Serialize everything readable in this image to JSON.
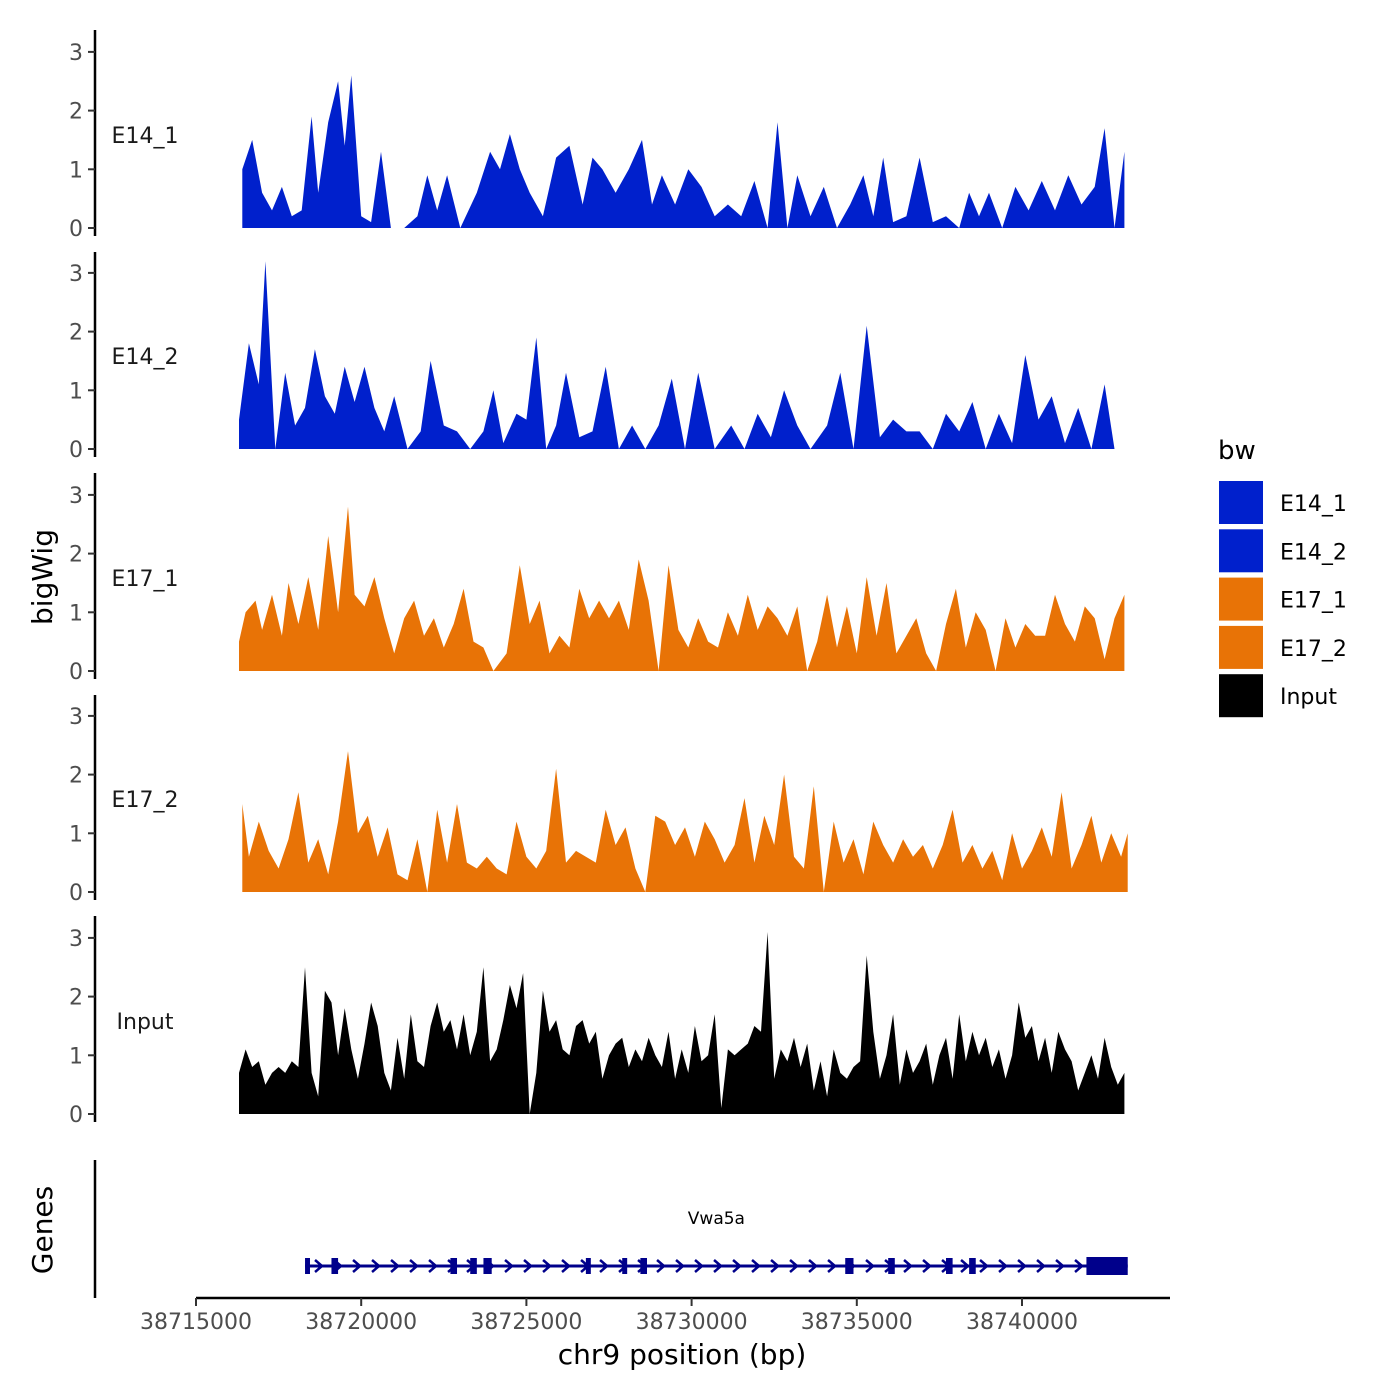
{
  "chart_data": {
    "type": "area",
    "title": "",
    "xlabel": "chr9 position (bp)",
    "ylabel": "bigWig",
    "gene_panel_label": "Genes",
    "legend": {
      "title": "bw",
      "placement": "right",
      "entries": [
        {
          "name": "E14_1",
          "color": "#0020CC"
        },
        {
          "name": "E14_2",
          "color": "#0020CC"
        },
        {
          "name": "E17_1",
          "color": "#E87306"
        },
        {
          "name": "E17_2",
          "color": "#E87306"
        },
        {
          "name": "Input",
          "color": "#000000"
        }
      ]
    },
    "xlim": [
      38715000,
      38744500
    ],
    "xticks": [
      38715000,
      38720000,
      38725000,
      38730000,
      38735000,
      38740000
    ],
    "xtick_labels": [
      "38715000",
      "38720000",
      "38725000",
      "38730000",
      "38735000",
      "38740000"
    ],
    "ylim": [
      0,
      3.3
    ],
    "yticks": [
      0,
      1,
      2,
      3
    ],
    "ytick_labels": [
      "0",
      "1",
      "2",
      "3"
    ],
    "series": [
      {
        "name": "E14_1",
        "color": "#0020CC",
        "x": [
          38716400,
          38716700,
          38717000,
          38717300,
          38717600,
          38717900,
          38718200,
          38718500,
          38718700,
          38719000,
          38719300,
          38719500,
          38719700,
          38720000,
          38720300,
          38720600,
          38720900,
          38721300,
          38721700,
          38722000,
          38722300,
          38722600,
          38723000,
          38723500,
          38723900,
          38724200,
          38724500,
          38724800,
          38725100,
          38725500,
          38725900,
          38726300,
          38726700,
          38727000,
          38727300,
          38727700,
          38728100,
          38728500,
          38728800,
          38729100,
          38729500,
          38729900,
          38730300,
          38730700,
          38731100,
          38731500,
          38731900,
          38732300,
          38732600,
          38732900,
          38733200,
          38733600,
          38734000,
          38734400,
          38734800,
          38735200,
          38735500,
          38735800,
          38736100,
          38736500,
          38736900,
          38737300,
          38737700,
          38738100,
          38738400,
          38738700,
          38739000,
          38739400,
          38739800,
          38740200,
          38740600,
          38741000,
          38741400,
          38741800,
          38742200,
          38742500,
          38742800,
          38743100
        ],
        "values": [
          1.0,
          1.5,
          0.6,
          0.3,
          0.7,
          0.2,
          0.3,
          1.9,
          0.6,
          1.8,
          2.5,
          1.4,
          2.6,
          0.2,
          0.1,
          1.3,
          0.0,
          0.0,
          0.2,
          0.9,
          0.3,
          0.9,
          0.0,
          0.6,
          1.3,
          1.0,
          1.6,
          1.0,
          0.6,
          0.2,
          1.2,
          1.4,
          0.4,
          1.2,
          1.0,
          0.6,
          1.0,
          1.5,
          0.4,
          0.9,
          0.4,
          1.0,
          0.7,
          0.2,
          0.4,
          0.2,
          0.8,
          0.0,
          1.8,
          0.0,
          0.9,
          0.2,
          0.7,
          0.0,
          0.4,
          0.9,
          0.2,
          1.2,
          0.1,
          0.2,
          1.2,
          0.1,
          0.2,
          0.0,
          0.6,
          0.2,
          0.6,
          0.0,
          0.7,
          0.3,
          0.8,
          0.3,
          0.9,
          0.4,
          0.7,
          1.7,
          0.0,
          1.3
        ]
      },
      {
        "name": "E14_2",
        "color": "#0020CC",
        "x": [
          38716300,
          38716600,
          38716900,
          38717100,
          38717400,
          38717700,
          38718000,
          38718300,
          38718600,
          38718900,
          38719200,
          38719500,
          38719800,
          38720100,
          38720400,
          38720700,
          38721000,
          38721400,
          38721800,
          38722100,
          38722500,
          38722900,
          38723300,
          38723700,
          38724000,
          38724300,
          38724700,
          38725000,
          38725300,
          38725600,
          38725900,
          38726200,
          38726600,
          38727000,
          38727400,
          38727800,
          38728200,
          38728600,
          38729000,
          38729400,
          38729800,
          38730200,
          38730700,
          38731200,
          38731600,
          38732000,
          38732400,
          38732800,
          38733200,
          38733600,
          38734100,
          38734500,
          38734900,
          38735300,
          38735700,
          38736100,
          38736500,
          38736900,
          38737300,
          38737700,
          38738100,
          38738500,
          38738900,
          38739300,
          38739700,
          38740100,
          38740500,
          38740900,
          38741300,
          38741700,
          38742100,
          38742500,
          38742800
        ],
        "values": [
          0.5,
          1.8,
          1.1,
          3.2,
          0.0,
          1.3,
          0.4,
          0.7,
          1.7,
          0.9,
          0.6,
          1.4,
          0.8,
          1.4,
          0.7,
          0.3,
          0.9,
          0.0,
          0.3,
          1.5,
          0.4,
          0.3,
          0.0,
          0.3,
          1.0,
          0.1,
          0.6,
          0.5,
          1.9,
          0.0,
          0.4,
          1.3,
          0.2,
          0.3,
          1.4,
          0.0,
          0.4,
          0.0,
          0.4,
          1.2,
          0.0,
          1.3,
          0.0,
          0.4,
          0.0,
          0.6,
          0.2,
          1.0,
          0.4,
          0.0,
          0.4,
          1.3,
          0.0,
          2.1,
          0.2,
          0.5,
          0.3,
          0.3,
          0.0,
          0.6,
          0.3,
          0.8,
          0.0,
          0.6,
          0.1,
          1.6,
          0.5,
          0.9,
          0.1,
          0.7,
          0.0,
          1.1,
          0.0
        ]
      },
      {
        "name": "E17_1",
        "color": "#E87306",
        "x": [
          38716300,
          38716500,
          38716800,
          38717000,
          38717300,
          38717600,
          38717800,
          38718100,
          38718400,
          38718700,
          38719000,
          38719300,
          38719600,
          38719800,
          38720100,
          38720400,
          38720700,
          38721000,
          38721300,
          38721600,
          38721900,
          38722200,
          38722500,
          38722800,
          38723100,
          38723400,
          38723700,
          38724000,
          38724400,
          38724800,
          38725100,
          38725400,
          38725700,
          38726000,
          38726300,
          38726600,
          38726900,
          38727200,
          38727500,
          38727800,
          38728100,
          38728400,
          38728700,
          38729000,
          38729300,
          38729600,
          38729900,
          38730200,
          38730500,
          38730800,
          38731100,
          38731400,
          38731700,
          38732000,
          38732300,
          38732600,
          38732900,
          38733200,
          38733500,
          38733800,
          38734100,
          38734400,
          38734700,
          38735000,
          38735300,
          38735600,
          38735900,
          38736200,
          38736500,
          38736800,
          38737100,
          38737400,
          38737700,
          38738000,
          38738300,
          38738600,
          38738900,
          38739200,
          38739500,
          38739800,
          38740100,
          38740400,
          38740700,
          38741000,
          38741300,
          38741600,
          38741900,
          38742200,
          38742500,
          38742800,
          38743100
        ],
        "values": [
          0.5,
          1.0,
          1.2,
          0.7,
          1.3,
          0.6,
          1.5,
          0.8,
          1.6,
          0.7,
          2.3,
          1.0,
          2.8,
          1.3,
          1.1,
          1.6,
          0.9,
          0.3,
          0.9,
          1.2,
          0.6,
          0.9,
          0.4,
          0.8,
          1.4,
          0.5,
          0.4,
          0.0,
          0.3,
          1.8,
          0.8,
          1.2,
          0.3,
          0.6,
          0.4,
          1.4,
          0.9,
          1.2,
          0.9,
          1.2,
          0.7,
          1.9,
          1.2,
          0.0,
          1.8,
          0.7,
          0.4,
          0.9,
          0.5,
          0.4,
          1.0,
          0.6,
          1.3,
          0.7,
          1.1,
          0.9,
          0.6,
          1.1,
          0.0,
          0.5,
          1.3,
          0.4,
          1.1,
          0.3,
          1.6,
          0.6,
          1.5,
          0.3,
          0.6,
          0.9,
          0.3,
          0.0,
          0.8,
          1.4,
          0.4,
          1.0,
          0.7,
          0.0,
          0.9,
          0.4,
          0.8,
          0.6,
          0.6,
          1.3,
          0.8,
          0.5,
          1.1,
          0.9,
          0.2,
          0.9,
          1.3
        ]
      },
      {
        "name": "E17_2",
        "color": "#E87306",
        "x": [
          38716400,
          38716600,
          38716900,
          38717200,
          38717500,
          38717800,
          38718100,
          38718400,
          38718700,
          38719000,
          38719300,
          38719600,
          38719900,
          38720200,
          38720500,
          38720800,
          38721100,
          38721400,
          38721700,
          38722000,
          38722300,
          38722600,
          38722900,
          38723200,
          38723500,
          38723800,
          38724100,
          38724400,
          38724700,
          38725000,
          38725300,
          38725600,
          38725900,
          38726200,
          38726500,
          38726800,
          38727100,
          38727400,
          38727700,
          38728000,
          38728300,
          38728600,
          38728900,
          38729200,
          38729500,
          38729800,
          38730100,
          38730400,
          38730700,
          38731000,
          38731300,
          38731600,
          38731900,
          38732200,
          38732500,
          38732800,
          38733100,
          38733400,
          38733700,
          38734000,
          38734300,
          38734600,
          38734900,
          38735200,
          38735500,
          38735800,
          38736100,
          38736400,
          38736700,
          38737000,
          38737300,
          38737600,
          38737900,
          38738200,
          38738500,
          38738800,
          38739100,
          38739400,
          38739700,
          38740000,
          38740300,
          38740600,
          38740900,
          38741200,
          38741500,
          38741800,
          38742100,
          38742400,
          38742700,
          38743000,
          38743200
        ],
        "values": [
          1.5,
          0.6,
          1.2,
          0.7,
          0.4,
          0.9,
          1.7,
          0.5,
          0.9,
          0.3,
          1.2,
          2.4,
          1.0,
          1.3,
          0.6,
          1.1,
          0.3,
          0.2,
          0.9,
          0.0,
          1.4,
          0.5,
          1.5,
          0.5,
          0.4,
          0.6,
          0.4,
          0.3,
          1.2,
          0.6,
          0.4,
          0.7,
          2.1,
          0.5,
          0.7,
          0.6,
          0.5,
          1.4,
          0.8,
          1.1,
          0.4,
          0.0,
          1.3,
          1.2,
          0.8,
          1.1,
          0.6,
          1.2,
          0.9,
          0.5,
          0.8,
          1.6,
          0.5,
          1.3,
          0.8,
          2.0,
          0.6,
          0.4,
          1.8,
          0.0,
          1.2,
          0.5,
          0.9,
          0.3,
          1.2,
          0.8,
          0.5,
          0.9,
          0.6,
          0.8,
          0.4,
          0.8,
          1.4,
          0.5,
          0.8,
          0.4,
          0.7,
          0.2,
          1.0,
          0.4,
          0.7,
          1.1,
          0.6,
          1.7,
          0.4,
          0.8,
          1.3,
          0.5,
          1.0,
          0.6,
          1.0
        ]
      },
      {
        "name": "Input",
        "color": "#000000",
        "x": [
          38716300,
          38716500,
          38716700,
          38716900,
          38717100,
          38717300,
          38717500,
          38717700,
          38717900,
          38718100,
          38718300,
          38718500,
          38718700,
          38718900,
          38719100,
          38719300,
          38719500,
          38719700,
          38719900,
          38720100,
          38720300,
          38720500,
          38720700,
          38720900,
          38721100,
          38721300,
          38721500,
          38721700,
          38721900,
          38722100,
          38722300,
          38722500,
          38722700,
          38722900,
          38723100,
          38723300,
          38723500,
          38723700,
          38723900,
          38724100,
          38724300,
          38724500,
          38724700,
          38724900,
          38725100,
          38725300,
          38725500,
          38725700,
          38725900,
          38726100,
          38726300,
          38726500,
          38726700,
          38726900,
          38727100,
          38727300,
          38727500,
          38727700,
          38727900,
          38728100,
          38728300,
          38728500,
          38728700,
          38728900,
          38729100,
          38729300,
          38729500,
          38729700,
          38729900,
          38730100,
          38730300,
          38730500,
          38730700,
          38730900,
          38731100,
          38731300,
          38731500,
          38731700,
          38731900,
          38732100,
          38732300,
          38732500,
          38732700,
          38732900,
          38733100,
          38733300,
          38733500,
          38733700,
          38733900,
          38734100,
          38734300,
          38734500,
          38734700,
          38734900,
          38735100,
          38735300,
          38735500,
          38735700,
          38735900,
          38736100,
          38736300,
          38736500,
          38736700,
          38736900,
          38737100,
          38737300,
          38737500,
          38737700,
          38737900,
          38738100,
          38738300,
          38738500,
          38738700,
          38738900,
          38739100,
          38739300,
          38739500,
          38739700,
          38739900,
          38740100,
          38740300,
          38740500,
          38740700,
          38740900,
          38741100,
          38741300,
          38741500,
          38741700,
          38741900,
          38742100,
          38742300,
          38742500,
          38742700,
          38742900,
          38743100
        ],
        "values": [
          0.7,
          1.1,
          0.8,
          0.9,
          0.5,
          0.7,
          0.8,
          0.7,
          0.9,
          0.8,
          2.5,
          0.7,
          0.3,
          2.1,
          1.9,
          1.0,
          1.8,
          1.1,
          0.6,
          1.2,
          1.9,
          1.5,
          0.7,
          0.4,
          1.3,
          0.6,
          1.7,
          0.9,
          0.8,
          1.5,
          1.9,
          1.4,
          1.6,
          1.1,
          1.7,
          1.0,
          1.4,
          2.5,
          0.9,
          1.1,
          1.6,
          2.2,
          1.8,
          2.4,
          0.0,
          0.7,
          2.1,
          1.4,
          1.6,
          1.1,
          1.0,
          1.5,
          1.6,
          1.2,
          1.4,
          0.6,
          1.0,
          1.2,
          1.3,
          0.8,
          1.1,
          0.9,
          1.3,
          1.0,
          0.8,
          1.4,
          0.6,
          1.1,
          0.7,
          1.5,
          0.9,
          1.0,
          1.7,
          0.1,
          1.1,
          1.0,
          1.1,
          1.2,
          1.5,
          1.4,
          3.1,
          0.6,
          1.1,
          0.9,
          1.3,
          0.8,
          1.2,
          0.4,
          0.9,
          0.3,
          1.1,
          0.7,
          0.6,
          0.8,
          0.9,
          2.7,
          1.4,
          0.6,
          1.0,
          1.7,
          0.5,
          1.1,
          0.7,
          0.9,
          1.2,
          0.5,
          1.0,
          1.3,
          0.6,
          1.7,
          0.9,
          1.4,
          1.0,
          1.3,
          0.8,
          1.1,
          0.6,
          1.0,
          1.9,
          1.3,
          1.5,
          0.9,
          1.3,
          0.7,
          1.4,
          1.1,
          0.9,
          0.4,
          0.7,
          1.0,
          0.6,
          1.3,
          0.8,
          0.5,
          0.7
        ]
      }
    ],
    "gene": {
      "name": "Vwa5a",
      "color": "#00008B",
      "start": 38718300,
      "end": 38743200,
      "strand": "+",
      "exons": [
        [
          38718300,
          38718450
        ],
        [
          38719100,
          38719300
        ],
        [
          38722700,
          38722900
        ],
        [
          38723300,
          38723500
        ],
        [
          38723700,
          38723950
        ],
        [
          38726800,
          38726950
        ],
        [
          38727900,
          38728050
        ],
        [
          38728450,
          38728650
        ],
        [
          38734650,
          38734900
        ],
        [
          38735950,
          38736150
        ],
        [
          38737700,
          38737900
        ],
        [
          38738400,
          38738600
        ],
        [
          38741950,
          38743200
        ]
      ]
    }
  }
}
